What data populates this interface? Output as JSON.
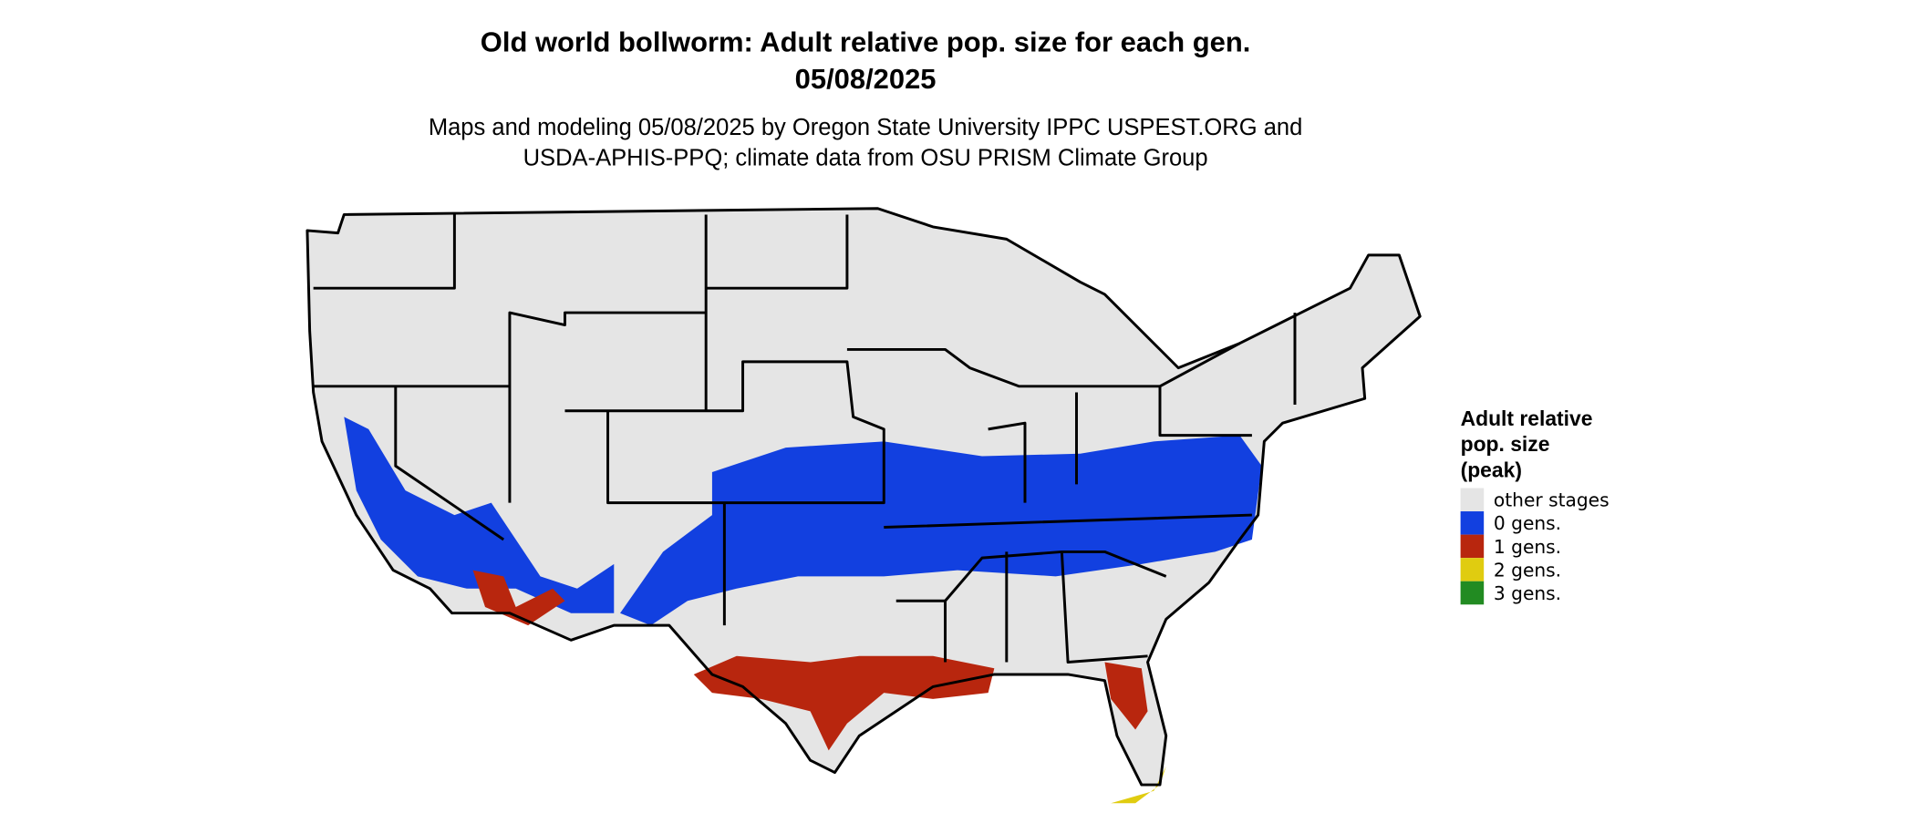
{
  "title": "Old world bollworm: Adult relative pop. size for each gen.",
  "date": "05/08/2025",
  "subtitle_lines": [
    "Maps and modeling 05/08/2025 by Oregon State University IPPC USPEST.ORG and",
    "USDA-APHIS-PPQ; climate data from OSU PRISM Climate Group"
  ],
  "legend": {
    "title_lines": [
      "Adult relative",
      "pop. size",
      "(peak)"
    ],
    "items": [
      {
        "label": "other stages",
        "color": "#e5e5e5"
      },
      {
        "label": "0 gens.",
        "color": "#1240e0"
      },
      {
        "label": "1 gens.",
        "color": "#b8260e"
      },
      {
        "label": "2 gens.",
        "color": "#e0cc10"
      },
      {
        "label": "3 gens.",
        "color": "#228b22"
      }
    ]
  }
}
